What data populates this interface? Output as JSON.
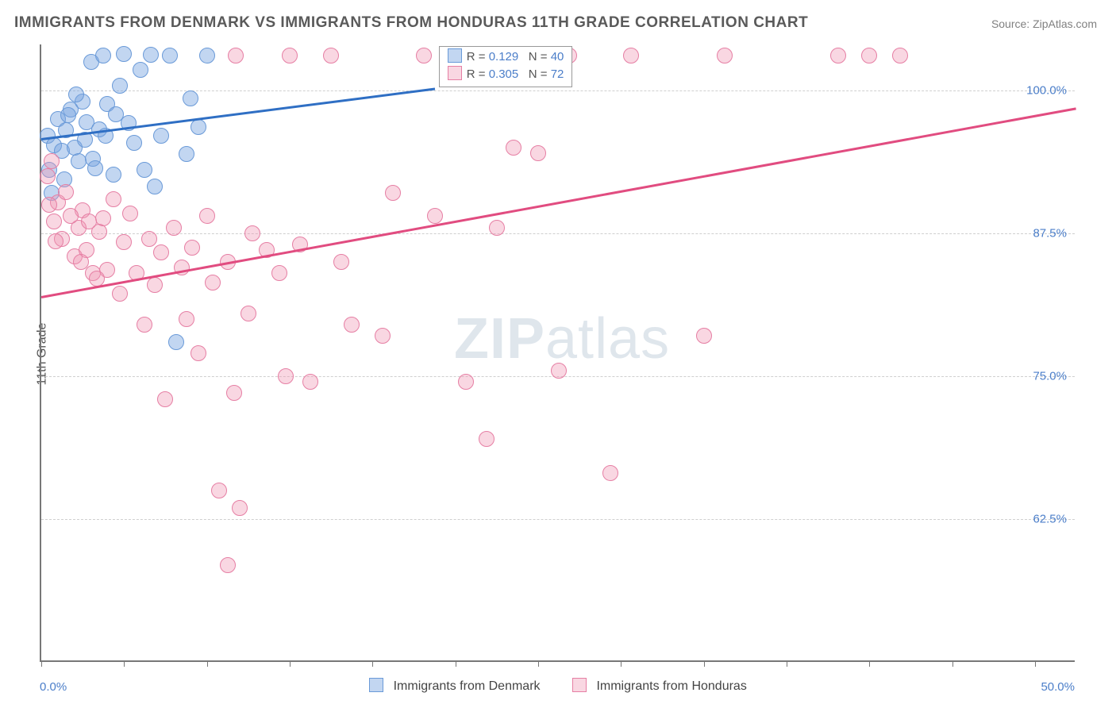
{
  "title": "IMMIGRANTS FROM DENMARK VS IMMIGRANTS FROM HONDURAS 11TH GRADE CORRELATION CHART",
  "source": "Source: ZipAtlas.com",
  "ylabel": "11th Grade",
  "watermark_zip": "ZIP",
  "watermark_atlas": "atlas",
  "chart": {
    "type": "scatter",
    "xlim": [
      0,
      50
    ],
    "ylim": [
      50,
      104
    ],
    "x_ticks": [
      0,
      4,
      8,
      12,
      16,
      20,
      24,
      28,
      32,
      36,
      40,
      44,
      48
    ],
    "x_tick_labels": {
      "left": "0.0%",
      "right": "50.0%"
    },
    "y_ticks": [
      62.5,
      75.0,
      87.5,
      100.0
    ],
    "y_tick_labels": [
      "62.5%",
      "75.0%",
      "87.5%",
      "100.0%"
    ],
    "grid_color": "#cfcfcf",
    "axis_color": "#777777",
    "background_color": "#ffffff",
    "tick_label_color": "#4b7ec9",
    "point_radius": 9,
    "point_border_width": 1,
    "series": [
      {
        "key": "denmark",
        "label": "Immigrants from Denmark",
        "fill": "rgba(120,165,225,0.45)",
        "stroke": "#6a9ad8",
        "line_color": "#2f6fc4",
        "R": "0.129",
        "N": "40",
        "trend": {
          "x1": 0,
          "y1": 95.8,
          "x2": 19,
          "y2": 100.2
        },
        "points": [
          [
            0.3,
            96.0
          ],
          [
            0.6,
            95.2
          ],
          [
            0.8,
            97.5
          ],
          [
            1.0,
            94.7
          ],
          [
            1.2,
            96.5
          ],
          [
            1.4,
            98.3
          ],
          [
            1.6,
            95.0
          ],
          [
            1.8,
            93.8
          ],
          [
            2.0,
            99.0
          ],
          [
            2.2,
            97.2
          ],
          [
            2.4,
            102.5
          ],
          [
            2.5,
            94.0
          ],
          [
            2.8,
            96.6
          ],
          [
            3.0,
            103.0
          ],
          [
            3.2,
            98.8
          ],
          [
            3.5,
            92.6
          ],
          [
            3.8,
            100.4
          ],
          [
            4.0,
            103.2
          ],
          [
            4.2,
            97.1
          ],
          [
            4.5,
            95.4
          ],
          [
            4.8,
            101.8
          ],
          [
            5.0,
            93.0
          ],
          [
            5.3,
            103.1
          ],
          [
            5.5,
            91.6
          ],
          [
            5.8,
            96.0
          ],
          [
            6.2,
            103.0
          ],
          [
            6.5,
            78.0
          ],
          [
            7.0,
            94.4
          ],
          [
            7.2,
            99.3
          ],
          [
            7.6,
            96.8
          ],
          [
            8.0,
            103.0
          ],
          [
            0.4,
            93.0
          ],
          [
            0.5,
            91.0
          ],
          [
            1.1,
            92.2
          ],
          [
            1.3,
            97.8
          ],
          [
            1.7,
            99.6
          ],
          [
            2.1,
            95.7
          ],
          [
            2.6,
            93.2
          ],
          [
            3.1,
            96.0
          ],
          [
            3.6,
            97.9
          ]
        ]
      },
      {
        "key": "honduras",
        "label": "Immigrants from Honduras",
        "fill": "rgba(240,150,180,0.38)",
        "stroke": "#e67fa4",
        "line_color": "#e14c80",
        "R": "0.305",
        "N": "72",
        "trend": {
          "x1": 0,
          "y1": 82.0,
          "x2": 50,
          "y2": 98.5
        },
        "points": [
          [
            0.3,
            92.5
          ],
          [
            0.5,
            93.8
          ],
          [
            0.6,
            88.5
          ],
          [
            0.8,
            90.2
          ],
          [
            1.0,
            87.0
          ],
          [
            1.2,
            91.1
          ],
          [
            1.6,
            85.5
          ],
          [
            1.8,
            88.0
          ],
          [
            2.0,
            89.5
          ],
          [
            2.2,
            86.0
          ],
          [
            2.5,
            84.0
          ],
          [
            2.8,
            87.6
          ],
          [
            3.0,
            88.8
          ],
          [
            3.2,
            84.3
          ],
          [
            3.5,
            90.5
          ],
          [
            3.8,
            82.2
          ],
          [
            4.0,
            86.7
          ],
          [
            4.3,
            89.2
          ],
          [
            4.6,
            84.0
          ],
          [
            5.0,
            79.5
          ],
          [
            5.2,
            87.0
          ],
          [
            5.5,
            83.0
          ],
          [
            5.8,
            85.8
          ],
          [
            6.0,
            73.0
          ],
          [
            6.4,
            88.0
          ],
          [
            6.8,
            84.5
          ],
          [
            7.0,
            80.0
          ],
          [
            7.3,
            86.2
          ],
          [
            7.6,
            77.0
          ],
          [
            8.0,
            89.0
          ],
          [
            8.3,
            83.2
          ],
          [
            8.6,
            65.0
          ],
          [
            9.0,
            85.0
          ],
          [
            9.4,
            103.0
          ],
          [
            9.6,
            63.5
          ],
          [
            10.0,
            80.5
          ],
          [
            9.0,
            58.5
          ],
          [
            9.3,
            73.5
          ],
          [
            10.2,
            87.5
          ],
          [
            10.9,
            86.0
          ],
          [
            11.5,
            84.0
          ],
          [
            11.8,
            75.0
          ],
          [
            12.0,
            103.0
          ],
          [
            12.5,
            86.5
          ],
          [
            13.0,
            74.5
          ],
          [
            14.0,
            103.0
          ],
          [
            14.5,
            85.0
          ],
          [
            15.0,
            79.5
          ],
          [
            16.5,
            78.5
          ],
          [
            17.0,
            91.0
          ],
          [
            18.5,
            103.0
          ],
          [
            19.0,
            89.0
          ],
          [
            20.5,
            74.5
          ],
          [
            21.5,
            69.5
          ],
          [
            22.0,
            88.0
          ],
          [
            22.8,
            95.0
          ],
          [
            24.0,
            94.5
          ],
          [
            25.0,
            75.5
          ],
          [
            25.5,
            103.0
          ],
          [
            28.5,
            103.0
          ],
          [
            27.5,
            66.5
          ],
          [
            32.0,
            78.5
          ],
          [
            33.0,
            103.0
          ],
          [
            38.5,
            103.0
          ],
          [
            40.0,
            103.0
          ],
          [
            41.5,
            103.0
          ],
          [
            0.4,
            90.0
          ],
          [
            0.7,
            86.8
          ],
          [
            1.4,
            89.0
          ],
          [
            1.9,
            85.0
          ],
          [
            2.3,
            88.5
          ],
          [
            2.7,
            83.5
          ]
        ]
      }
    ]
  },
  "legend_top": {
    "R_label": "R",
    "N_label": "N",
    "equals": " = "
  },
  "legend_bottom": {
    "items": [
      {
        "key": "denmark",
        "label": "Immigrants from Denmark"
      },
      {
        "key": "honduras",
        "label": "Immigrants from Honduras"
      }
    ]
  }
}
